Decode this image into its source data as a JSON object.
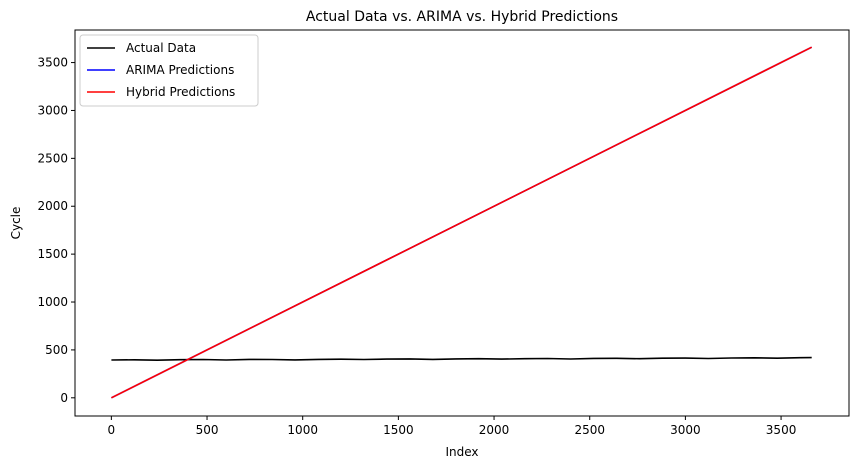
{
  "chart_data": {
    "type": "line",
    "title": "Actual Data vs. ARIMA vs. Hybrid Predictions",
    "xlabel": "Index",
    "ylabel": "Cycle",
    "xlim": [
      -190,
      3855
    ],
    "ylim": [
      -190,
      3840
    ],
    "x_ticks": [
      0,
      500,
      1000,
      1500,
      2000,
      2500,
      3000,
      3500
    ],
    "y_ticks": [
      0,
      500,
      1000,
      1500,
      2000,
      2500,
      3000,
      3500
    ],
    "grid": false,
    "legend_position": "upper-left",
    "series": [
      {
        "name": "Actual Data",
        "color": "#000000",
        "x": [
          0,
          120,
          240,
          360,
          480,
          600,
          720,
          840,
          960,
          1080,
          1200,
          1320,
          1440,
          1560,
          1680,
          1800,
          1920,
          2040,
          2160,
          2280,
          2400,
          2520,
          2640,
          2760,
          2880,
          3000,
          3120,
          3240,
          3360,
          3480,
          3600,
          3660
        ],
        "y": [
          395,
          397,
          393,
          398,
          400,
          395,
          401,
          400,
          396,
          401,
          403,
          400,
          404,
          406,
          401,
          406,
          408,
          404,
          408,
          410,
          405,
          411,
          412,
          408,
          413,
          415,
          410,
          416,
          418,
          413,
          419,
          420
        ]
      },
      {
        "name": "ARIMA Predictions",
        "color": "#0000ff",
        "x": [
          0,
          3660
        ],
        "y": [
          0,
          3660
        ]
      },
      {
        "name": "Hybrid Predictions",
        "color": "#ff0000",
        "x": [
          0,
          3660
        ],
        "y": [
          0,
          3660
        ]
      }
    ]
  }
}
